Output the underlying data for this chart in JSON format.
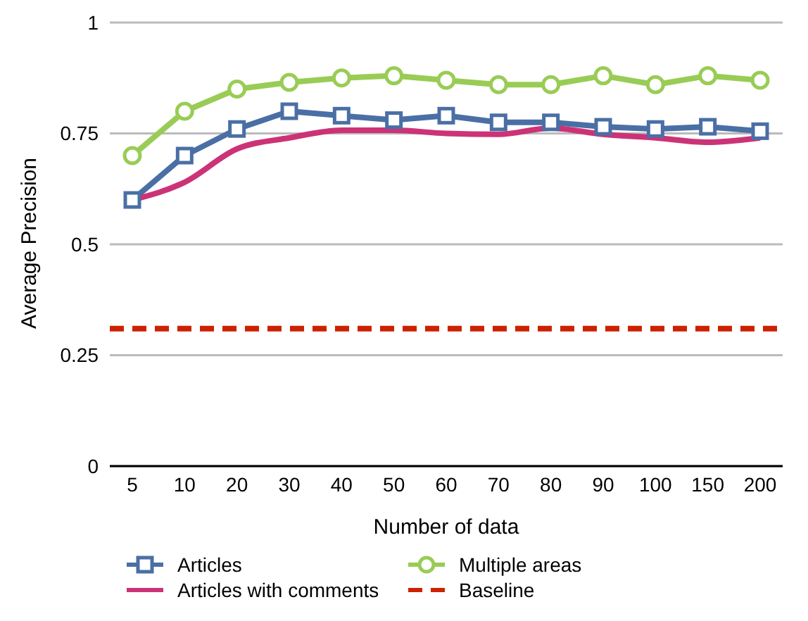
{
  "chart_data": {
    "type": "line",
    "xlabel": "Number of data",
    "ylabel": "Average Precision",
    "categories": [
      "5",
      "10",
      "20",
      "30",
      "40",
      "50",
      "60",
      "70",
      "80",
      "90",
      "100",
      "150",
      "200"
    ],
    "series": [
      {
        "name": "Articles",
        "color": "#4a6fa5",
        "marker": "square",
        "values": [
          0.6,
          0.7,
          0.76,
          0.8,
          0.79,
          0.78,
          0.79,
          0.775,
          0.775,
          0.765,
          0.76,
          0.765,
          0.755
        ]
      },
      {
        "name": "Articles with comments",
        "color": "#cc3377",
        "marker": "none",
        "values": [
          0.6,
          0.64,
          0.715,
          0.74,
          0.757,
          0.757,
          0.75,
          0.748,
          0.762,
          0.748,
          0.74,
          0.73,
          0.74
        ]
      },
      {
        "name": "Multiple areas",
        "color": "#99cc55",
        "marker": "circle",
        "values": [
          0.7,
          0.8,
          0.85,
          0.865,
          0.875,
          0.88,
          0.87,
          0.86,
          0.86,
          0.88,
          0.86,
          0.88,
          0.87
        ]
      }
    ],
    "ref_lines": [
      {
        "axis": "y",
        "value": 0.31,
        "label": "Baseline",
        "color": "#cc2200",
        "line_style": "dashed"
      }
    ],
    "ylim": [
      0,
      1
    ],
    "yticks": [
      0,
      0.25,
      0.5,
      0.75,
      1
    ],
    "grid": "y",
    "legend": "bottom"
  }
}
